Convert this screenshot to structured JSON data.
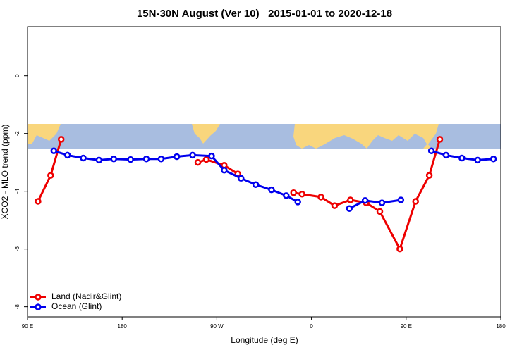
{
  "chart_data": {
    "type": "line",
    "title": "15N-30N August (Ver 10)   2015-01-01 to 2020-12-18",
    "x_label": "Longitude (deg E)",
    "y_label": "XCO2 - MLO trend (ppm)",
    "xlim": [
      90,
      540
    ],
    "xticks": [
      {
        "value": 90,
        "label": "90 E"
      },
      {
        "value": 180,
        "label": "180"
      },
      {
        "value": 270,
        "label": "90 W"
      },
      {
        "value": 360,
        "label": "0"
      },
      {
        "value": 450,
        "label": "90 E"
      },
      {
        "value": 540,
        "label": "180"
      }
    ],
    "ylim": [
      -8.35,
      1.7
    ],
    "yticks": [
      0,
      -2,
      -4,
      -6,
      -8
    ],
    "legend": "bottom-left",
    "series": [
      {
        "name": "Land (Nadir&Glint)",
        "color": "#ee0000",
        "x": [
          100,
          112,
          122,
          200,
          252,
          260,
          277,
          290,
          320,
          343,
          351,
          369,
          382,
          397,
          412,
          425,
          444,
          459,
          472,
          482
        ],
        "values": [
          -4.35,
          -3.45,
          -2.2,
          null,
          -3.0,
          -2.9,
          -3.1,
          -3.4,
          null,
          -4.05,
          -4.1,
          -4.2,
          -4.5,
          -4.3,
          -4.4,
          -4.7,
          -6.0,
          -4.35,
          -3.45,
          -2.2
        ]
      },
      {
        "name": "Ocean (Glint)",
        "color": "#0000ee",
        "x": [
          115,
          128,
          143,
          158,
          172,
          188,
          203,
          217,
          232,
          247,
          265,
          277,
          293,
          307,
          322,
          336,
          347,
          370,
          396,
          411,
          427,
          445,
          460,
          474,
          488,
          503,
          518,
          533
        ],
        "values": [
          -2.6,
          -2.75,
          -2.85,
          -2.92,
          -2.88,
          -2.9,
          -2.88,
          -2.88,
          -2.8,
          -2.75,
          -2.78,
          -3.27,
          -3.55,
          -3.77,
          -3.95,
          -4.15,
          -4.37,
          null,
          -4.6,
          -4.32,
          -4.4,
          -4.3,
          null,
          -2.6,
          -2.75,
          -2.85,
          -2.92,
          -2.88
        ]
      }
    ]
  }
}
